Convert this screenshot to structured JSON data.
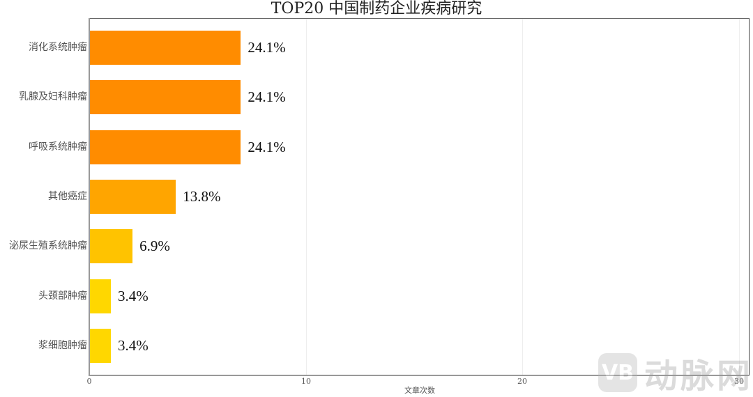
{
  "chart_data": {
    "type": "bar",
    "orientation": "horizontal",
    "title": "TOP20 中国制药企业疾病研究",
    "xlabel": "文章次数",
    "ylabel": "",
    "xlim": [
      0,
      30
    ],
    "xticks": [
      0,
      10,
      20,
      30
    ],
    "grid": true,
    "legend": null,
    "categories": [
      "消化系统肿瘤",
      "乳腺及妇科肿瘤",
      "呼吸系统肿瘤",
      "其他癌症",
      "泌尿生殖系统肿瘤",
      "头颈部肿瘤",
      "浆细胞肿瘤"
    ],
    "values": [
      7,
      7,
      7,
      4,
      2,
      1,
      1
    ],
    "data_labels": [
      "24.1%",
      "24.1%",
      "24.1%",
      "13.8%",
      "6.9%",
      "3.4%",
      "3.4%"
    ],
    "colors": [
      "#ff8c00",
      "#ff8c00",
      "#ff8c00",
      "#ffa500",
      "#ffc300",
      "#ffd700",
      "#ffd700"
    ]
  },
  "ticks": [
    "0",
    "10",
    "20",
    "30"
  ],
  "watermark": {
    "logo": "VB",
    "text": "动脉网"
  }
}
